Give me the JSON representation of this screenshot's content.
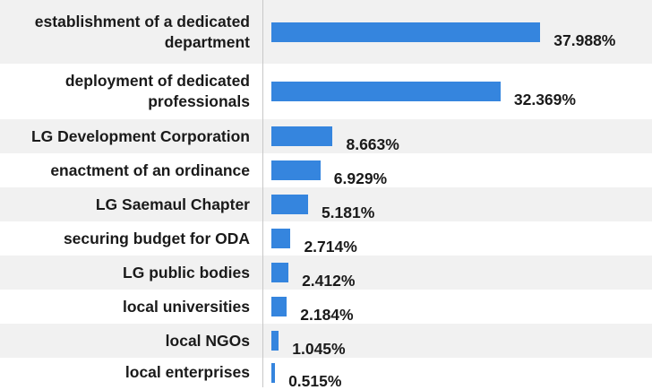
{
  "chart_data": {
    "type": "bar",
    "orientation": "horizontal",
    "categories": [
      "establishment of a dedicated department",
      "deployment of dedicated professionals",
      "LG Development Corporation",
      "enactment of an ordinance",
      "LG Saemaul Chapter",
      "securing budget for ODA",
      "LG public bodies",
      "local universities",
      "local NGOs",
      "local enterprises"
    ],
    "values": [
      37.988,
      32.369,
      8.663,
      6.929,
      5.181,
      2.714,
      2.412,
      2.184,
      1.045,
      0.515
    ],
    "value_labels": [
      "37.988%",
      "32.369%",
      "8.663%",
      "6.929%",
      "5.181%",
      "2.714%",
      "2.412%",
      "2.184%",
      "1.045%",
      "0.515%"
    ],
    "xlim": [
      0,
      40
    ],
    "bar_color": "#3585de",
    "grid": false
  }
}
